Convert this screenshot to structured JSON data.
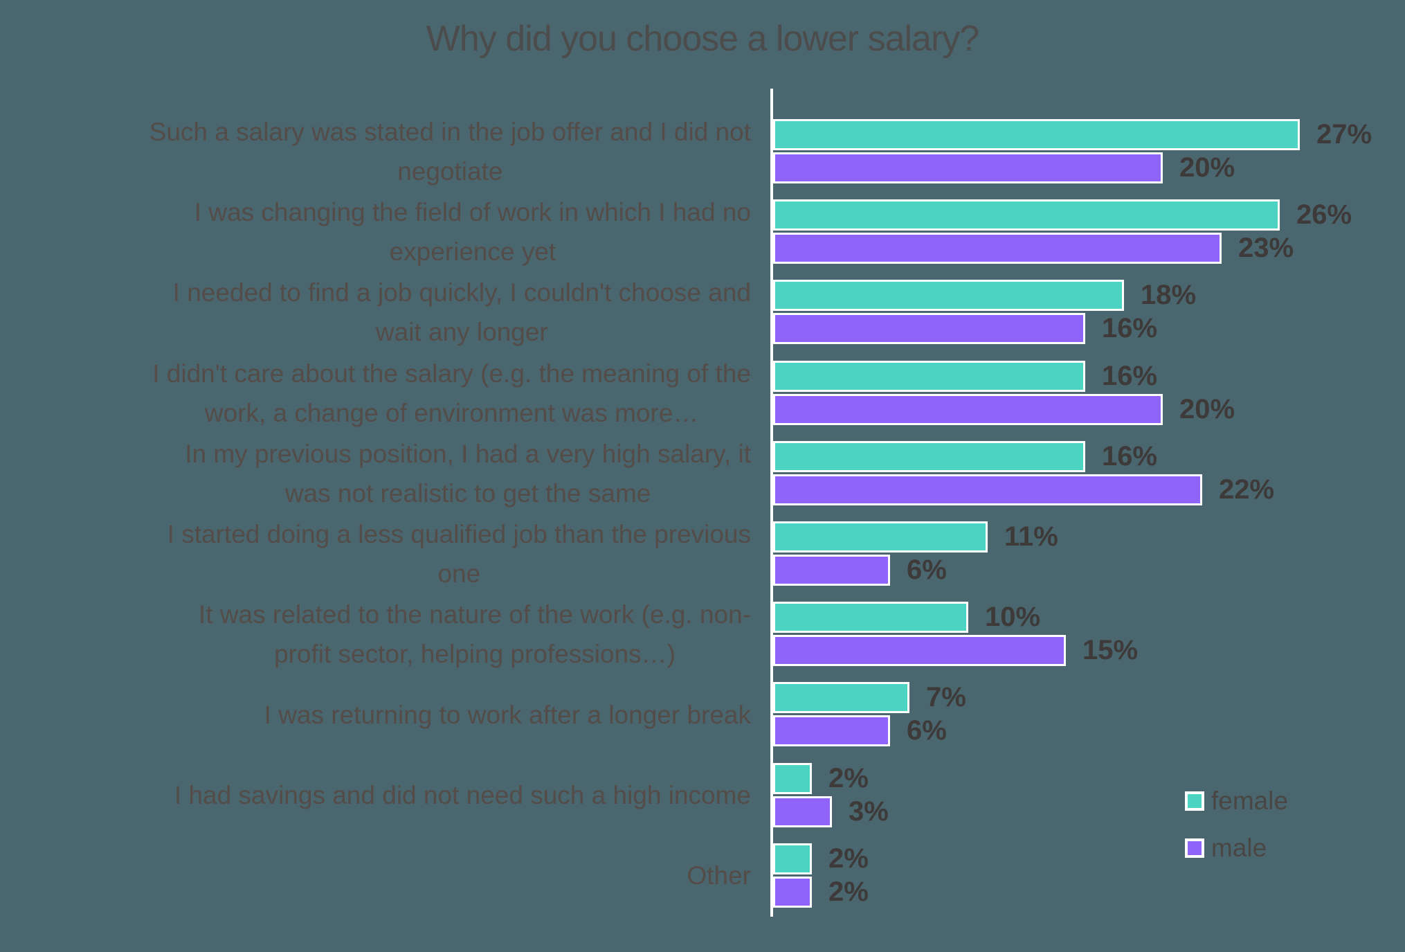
{
  "colors": {
    "background": "#4A666E",
    "title_text": "#4C4C4C",
    "category_text": "#544C49",
    "value_text": "#3D3A39",
    "legend_text": "#4A4644",
    "bar_border": "#FFFFFF",
    "axis_line": "#FFFFFF",
    "female": "#4DD3C1",
    "male": "#8F64FA"
  },
  "legend": {
    "female_label": "female",
    "male_label": "male"
  },
  "chart_data": {
    "type": "bar",
    "orientation": "horizontal",
    "title": "Why did you choose a lower salary?",
    "categories": [
      "Such a salary was stated in the job offer and I did not\nnegotiate",
      "I was changing the field of work in which I had no\nexperience yet",
      "I needed to find a job quickly, I couldn't choose and\nwait any longer",
      "I didn't care about the salary (e.g. the meaning of the\nwork, a change of environment was more…",
      "In my previous position, I had a very high salary, it\nwas not realistic to get the same",
      "I started doing a less qualified job than the previous\none",
      "It was related to the nature of the work (e.g. non-\nprofit sector, helping professions…)",
      "I was returning to work after a longer break",
      "I had savings and did not need such a high income",
      "Other"
    ],
    "series": [
      {
        "name": "female",
        "color": "#4DD3C1",
        "values": [
          27,
          26,
          18,
          16,
          16,
          11,
          10,
          7,
          2,
          2
        ]
      },
      {
        "name": "male",
        "color": "#8F64FA",
        "values": [
          20,
          23,
          16,
          20,
          22,
          6,
          15,
          6,
          3,
          2
        ]
      }
    ],
    "value_suffix": "%",
    "xlim": [
      0,
      30
    ],
    "grid": false,
    "legend_position": "bottom-right"
  }
}
